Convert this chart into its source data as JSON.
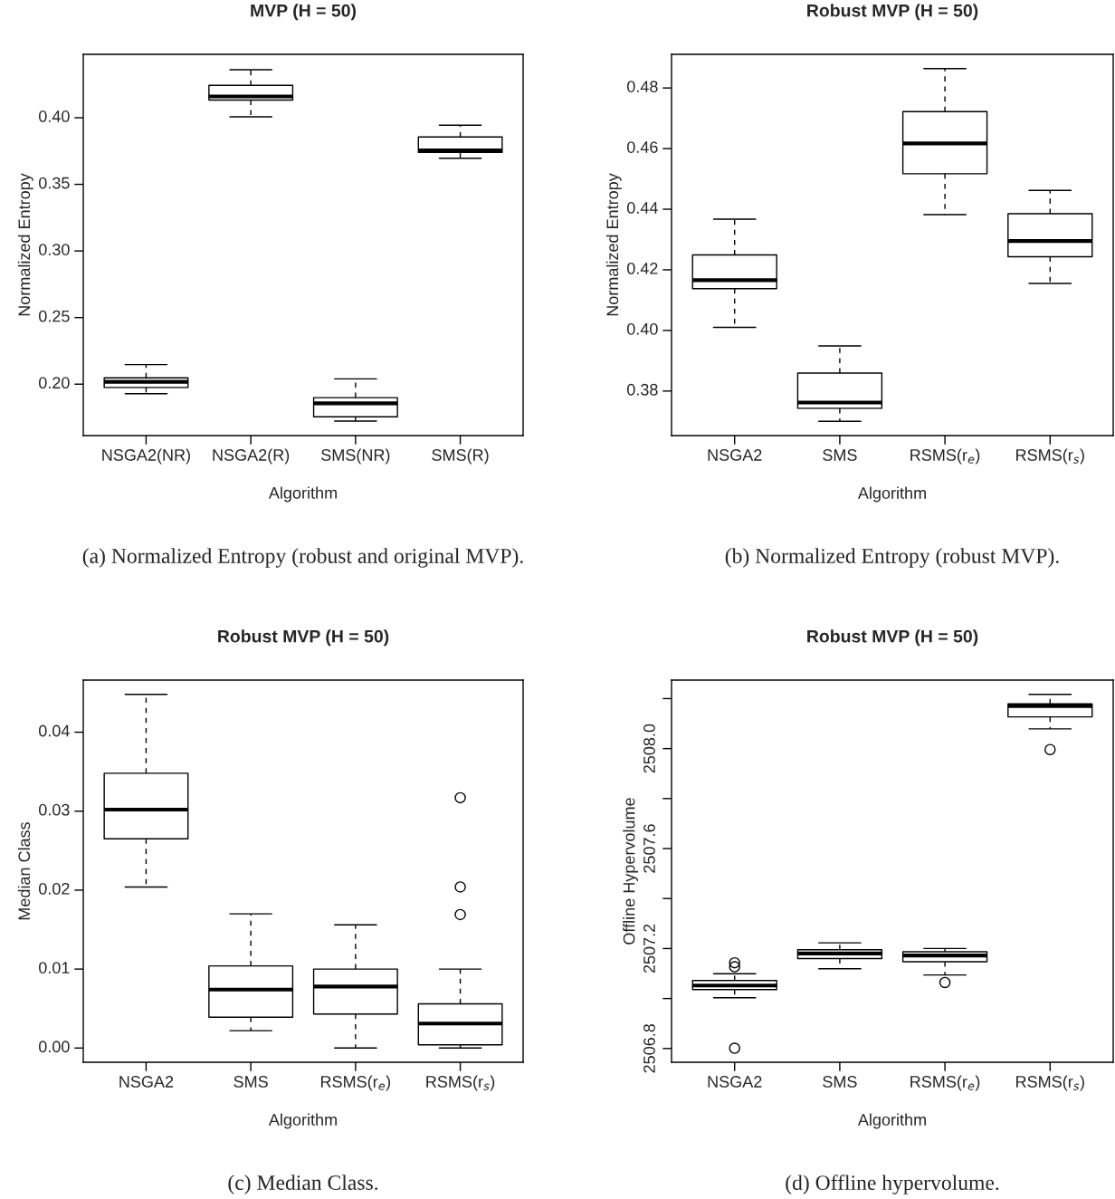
{
  "chart_data": [
    {
      "type": "box",
      "title": "MVP (H = 50)",
      "xlabel": "Algorithm",
      "ylabel": "Normalized Entropy",
      "categories": [
        "NSGA2(NR)",
        "NSGA2(R)",
        "SMS(NR)",
        "SMS(R)"
      ],
      "boxes": [
        {
          "low": 0.1928,
          "q1": 0.1975,
          "median": 0.2018,
          "q3": 0.2047,
          "high": 0.2147
        },
        {
          "low": 0.4007,
          "q1": 0.4133,
          "median": 0.416,
          "q3": 0.4243,
          "high": 0.436
        },
        {
          "low": 0.1723,
          "q1": 0.1755,
          "median": 0.1856,
          "q3": 0.1899,
          "high": 0.204
        },
        {
          "low": 0.3696,
          "q1": 0.3739,
          "median": 0.3755,
          "q3": 0.3856,
          "high": 0.3944
        }
      ],
      "ylim": [
        0.1614,
        0.4476
      ],
      "yticks": [
        {
          "value": 0.2,
          "label": "0.20"
        },
        0.25,
        {
          "value": 0.3,
          "label": "0.30"
        },
        0.35,
        {
          "value": 0.4,
          "label": "0.40"
        }
      ],
      "annotations": [
        "(a) Normalized Entropy (robust and original MVP)."
      ]
    },
    {
      "type": "box",
      "title": "Robust MVP (H = 50)",
      "xlabel": "Algorithm",
      "ylabel": "Normalized Entropy",
      "categories": [
        "NSGA2",
        "SMS",
        "RSMS(r$_{e}$)",
        "RSMS(r$_{s}$)"
      ],
      "boxes": [
        {
          "low": 0.401,
          "q1": 0.4138,
          "median": 0.4166,
          "q3": 0.4249,
          "high": 0.4367
        },
        {
          "low": 0.37,
          "q1": 0.3743,
          "median": 0.3762,
          "q3": 0.3859,
          "high": 0.3949
        },
        {
          "low": 0.4382,
          "q1": 0.4517,
          "median": 0.4617,
          "q3": 0.4722,
          "high": 0.4864
        },
        {
          "low": 0.4155,
          "q1": 0.4243,
          "median": 0.4295,
          "q3": 0.4385,
          "high": 0.4462
        }
      ],
      "ylim": [
        0.3653,
        0.4911
      ],
      "yticks": [
        0.38,
        {
          "value": 0.4,
          "label": "0.40"
        },
        0.42,
        0.44,
        0.46,
        0.48
      ],
      "annotations": [
        "(b) Normalized Entropy (robust MVP)."
      ]
    },
    {
      "type": "box",
      "title": "Robust MVP (H = 50)",
      "xlabel": "Algorithm",
      "ylabel": "Median Class",
      "categories": [
        "NSGA2",
        "SMS",
        "RSMS(r$_{e}$)",
        "RSMS(r$_{s}$)"
      ],
      "boxes": [
        {
          "low": 0.0204,
          "q1": 0.0265,
          "median": 0.0302,
          "q3": 0.0348,
          "high": 0.0448
        },
        {
          "low": 0.0022,
          "q1": 0.0039,
          "median": 0.0074,
          "q3": 0.0104,
          "high": 0.017
        },
        {
          "low": 0.0,
          "q1": 0.0043,
          "median": 0.0078,
          "q3": 0.01,
          "high": 0.0156
        },
        {
          "low": 0.0,
          "q1": 0.0004,
          "median": 0.0031,
          "q3": 0.0056,
          "high": 0.01,
          "outliers": [
            0.0317,
            0.0204,
            0.0169
          ]
        }
      ],
      "ylim": [
        -0.0018,
        0.0466
      ],
      "yticks": [
        {
          "value": 0.0,
          "label": "0.00"
        },
        0.01,
        0.02,
        0.03,
        0.04
      ],
      "annotations": [
        "(c) Median Class."
      ]
    },
    {
      "type": "box",
      "title": "Robust MVP (H = 50)",
      "xlabel": "Algorithm",
      "ylabel": "Offline Hypervolume",
      "categories": [
        "NSGA2",
        "SMS",
        "RSMS(r$_{e}$)",
        "RSMS(r$_{s}$)"
      ],
      "boxes": [
        {
          "low": 2507.003,
          "q1": 2507.036,
          "median": 2507.052,
          "q3": 2507.072,
          "high": 2507.099,
          "outliers": [
            2507.143,
            2507.127,
            2506.801
          ]
        },
        {
          "low": 2507.119,
          "q1": 2507.16,
          "median": 2507.18,
          "q3": 2507.195,
          "high": 2507.223
        },
        {
          "low": 2507.094,
          "q1": 2507.147,
          "median": 2507.172,
          "q3": 2507.187,
          "high": 2507.2,
          "outliers": [
            2507.064
          ]
        },
        {
          "low": 2508.079,
          "q1": 2508.127,
          "median": 2508.17,
          "q3": 2508.179,
          "high": 2508.217,
          "outliers": [
            2507.996
          ]
        }
      ],
      "ylim": [
        2506.745,
        2508.274
      ],
      "yticks": [
        2506.8,
        {
          "value": 2507.0,
          "label": null
        },
        2507.2,
        {
          "value": 2507.4,
          "label": null
        },
        2507.6,
        {
          "value": 2507.8,
          "label": null
        },
        {
          "value": 2508.0,
          "label": "2508.0"
        },
        {
          "value": 2508.2,
          "label": null
        }
      ],
      "annotations": [
        "(d) Offline hypervolume."
      ]
    }
  ]
}
